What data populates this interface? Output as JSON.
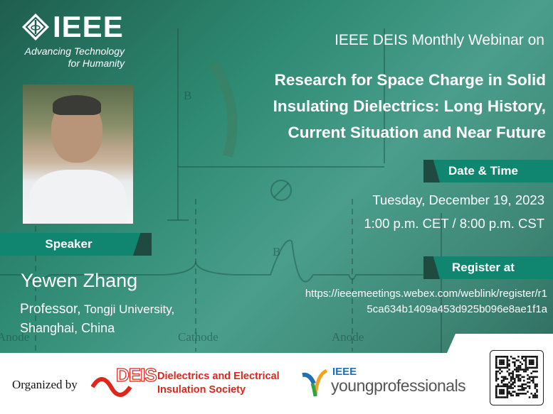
{
  "header": {
    "logo_text": "IEEE",
    "tagline_line1": "Advancing Technology",
    "tagline_line2": "for Humanity",
    "series": "IEEE DEIS Monthly Webinar on",
    "title_lines": [
      "Research for Space Charge in Solid",
      "Insulating Dielectrics: Long History,",
      "Current Situation and Near Future"
    ]
  },
  "background_labels": {
    "anode_left": "Anode",
    "cathode": "Cathode",
    "anode_right": "Anode",
    "b_top": "B",
    "b_mid": "B"
  },
  "speaker": {
    "banner": "Speaker",
    "name": "Yewen Zhang",
    "role": "Professor,",
    "affiliation": " Tongji University,",
    "location": "Shanghai, China"
  },
  "date_time": {
    "banner": "Date & Time",
    "date": "Tuesday, December 19, 2023",
    "time": "1:00 p.m. CET / 8:00 p.m. CST"
  },
  "register": {
    "banner": "Register at",
    "url_line1": "https://ieeemeetings.webex.com/weblink/register/r1",
    "url_line2": "5ca634b1409a453d925b096e8ae1f1a"
  },
  "footer": {
    "organized_by": "Organized by",
    "deis_logo": "DEIS",
    "deis_name_line1": "Dielectrics and Electrical",
    "deis_name_line2": "Insulation Society",
    "yp_ieee": "IEEE",
    "yp_name": "youngprofessionals"
  },
  "colors": {
    "banner": "#108570",
    "banner_dark": "#1f4a3f",
    "deis_red": "#e0261b",
    "yp_blue": "#1f6fb5"
  }
}
